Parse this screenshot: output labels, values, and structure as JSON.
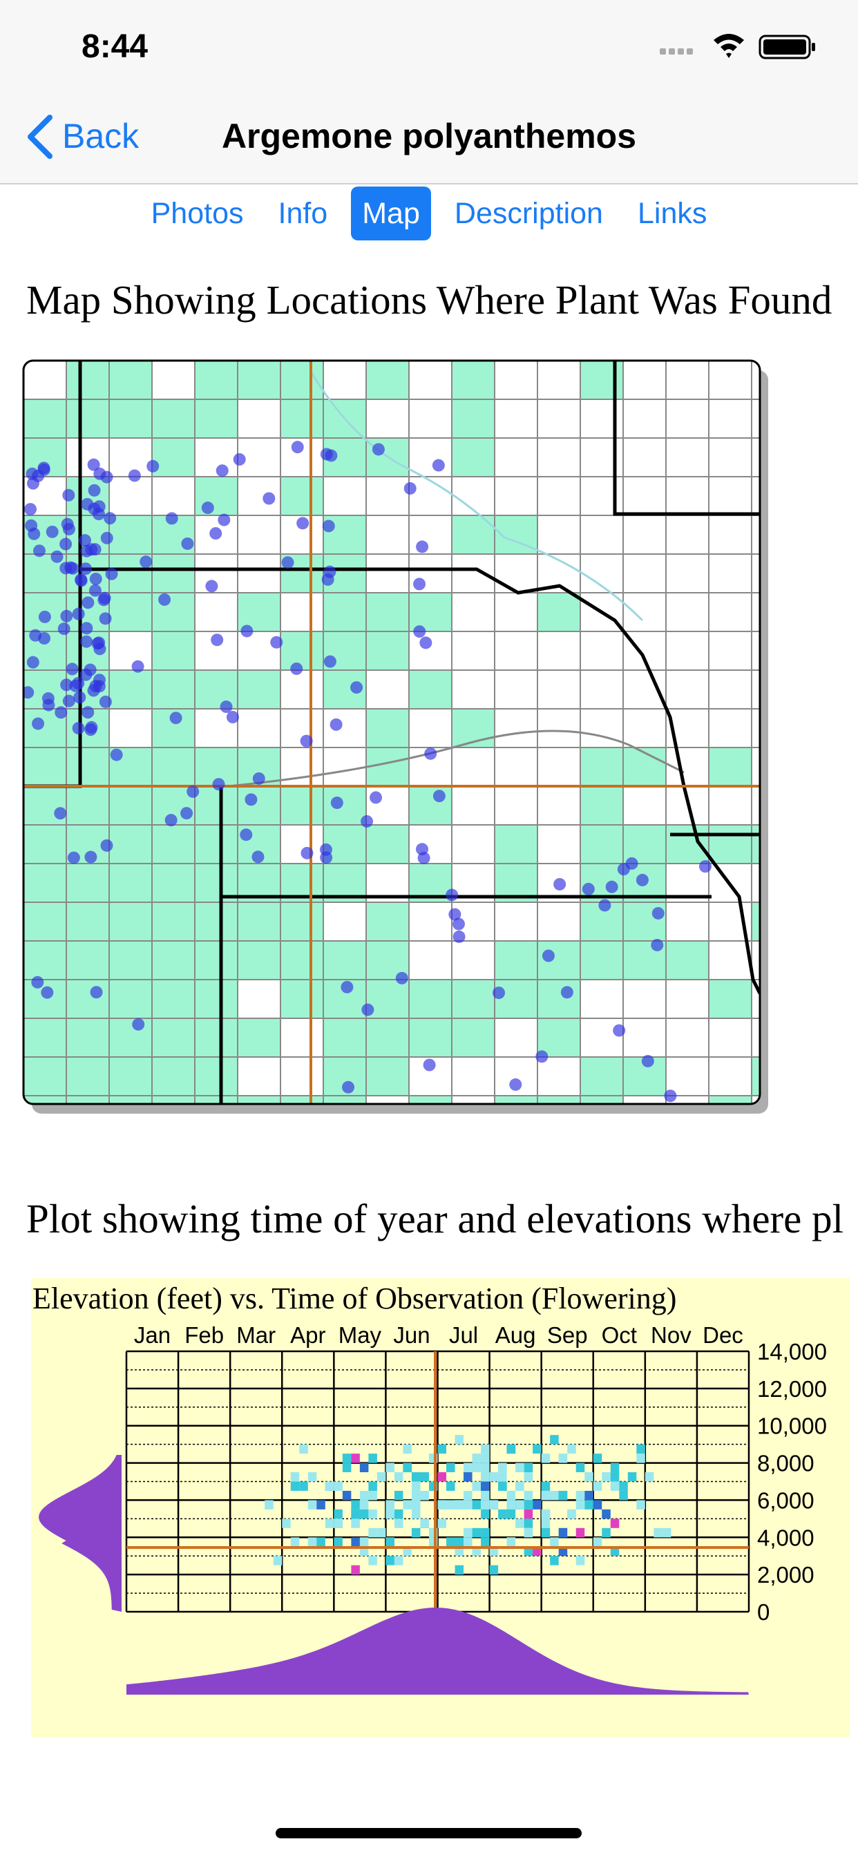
{
  "status_bar": {
    "time": "8:44"
  },
  "nav": {
    "back": "Back",
    "title": "Argemone polyanthemos"
  },
  "tabs": [
    {
      "label": "Photos",
      "selected": false
    },
    {
      "label": "Info",
      "selected": false
    },
    {
      "label": "Map",
      "selected": true
    },
    {
      "label": "Description",
      "selected": false
    },
    {
      "label": "Links",
      "selected": false
    }
  ],
  "sections": [
    {
      "heading": "Map Showing Locations Where Plant Was Found"
    },
    {
      "heading": "Plot showing time of year and elevations where pl"
    }
  ],
  "plot": {
    "title": "Elevation (feet) vs. Time of Observation (Flowering)",
    "months": [
      "Jan",
      "Feb",
      "Mar",
      "Apr",
      "May",
      "Jun",
      "Jul",
      "Aug",
      "Sep",
      "Oct",
      "Nov",
      "Dec"
    ],
    "elevation_labels": [
      "14,000",
      "12,000",
      "10,000",
      "8,000",
      "6,000",
      "4,000",
      "2,000",
      "0"
    ]
  }
}
